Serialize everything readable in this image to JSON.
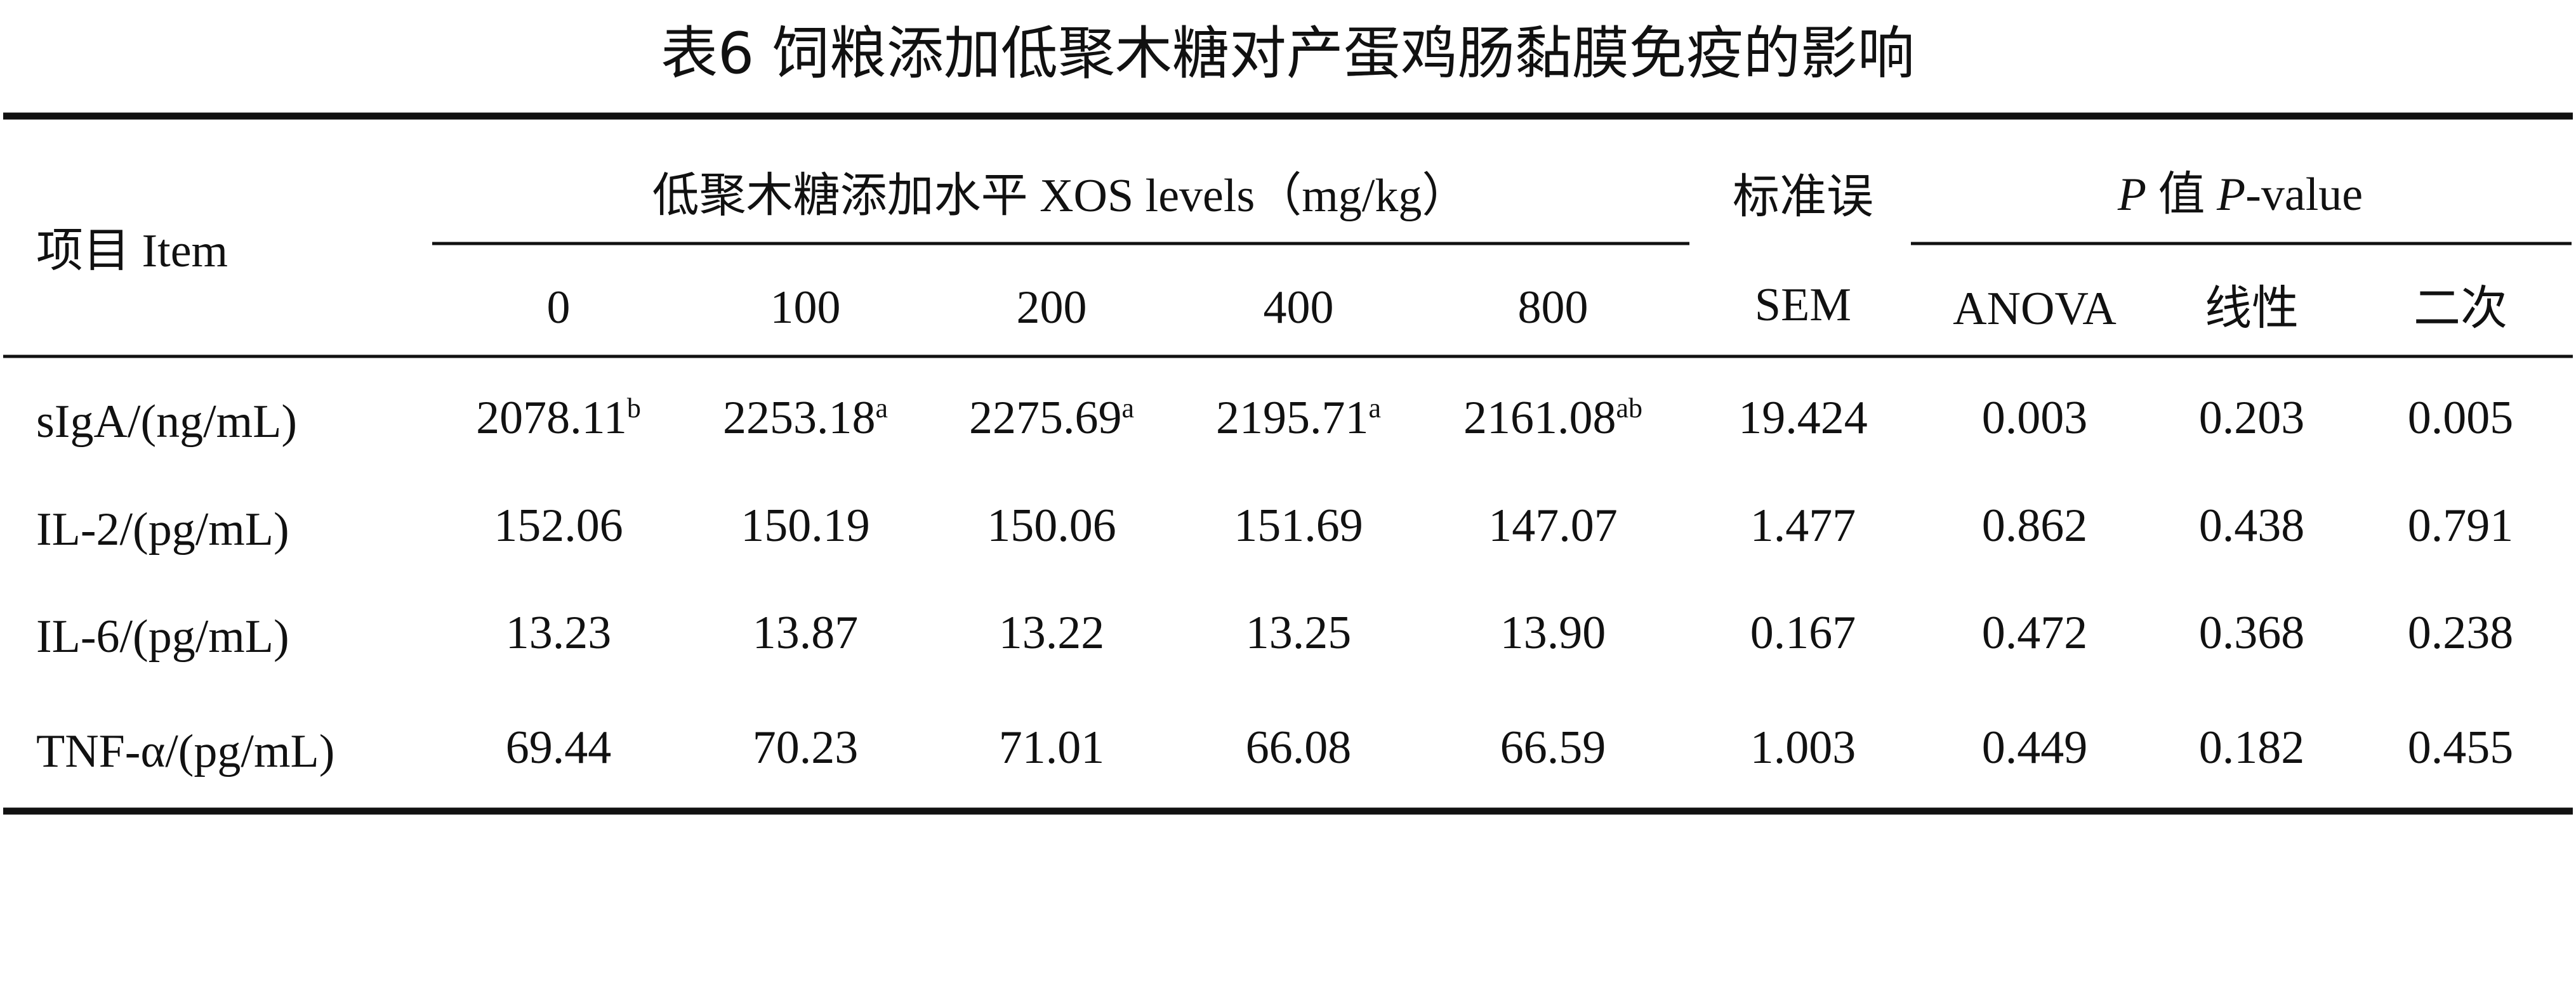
{
  "title": "表6 饲粮添加低聚木糖对产蛋鸡肠黏膜免疫的影响",
  "table": {
    "header": {
      "item": "项目 Item",
      "group": "低聚木糖添加水平 XOS levels（mg/kg）",
      "levels": [
        "0",
        "100",
        "200",
        "400",
        "800"
      ],
      "sem_cn": "标准误",
      "sem": "SEM",
      "p_group": [
        "P",
        " 值 ",
        "P",
        "-value"
      ],
      "p_cols": [
        "ANOVA",
        "线性",
        "二次"
      ]
    },
    "rows": [
      {
        "label": "sIgA/(ng/mL)",
        "cells": [
          {
            "value": "2078.11",
            "sup": "b"
          },
          {
            "value": "2253.18",
            "sup": "a"
          },
          {
            "value": "2275.69",
            "sup": "a"
          },
          {
            "value": "2195.71",
            "sup": "a"
          },
          {
            "value": "2161.08",
            "sup": "ab"
          },
          "19.424",
          "0.003",
          "0.203",
          "0.005"
        ]
      },
      {
        "label": "IL-2/(pg/mL)",
        "cells": [
          "152.06",
          "150.19",
          "150.06",
          "151.69",
          "147.07",
          "1.477",
          "0.862",
          "0.438",
          "0.791"
        ]
      },
      {
        "label": "IL-6/(pg/mL)",
        "cells": [
          "13.23",
          "13.87",
          "13.22",
          "13.25",
          "13.90",
          "0.167",
          "0.472",
          "0.368",
          "0.238"
        ]
      },
      {
        "label": "TNF-α/(pg/mL)",
        "cells": [
          "69.44",
          "70.23",
          "71.01",
          "66.08",
          "66.59",
          "1.003",
          "0.449",
          "0.182",
          "0.455"
        ]
      }
    ]
  }
}
